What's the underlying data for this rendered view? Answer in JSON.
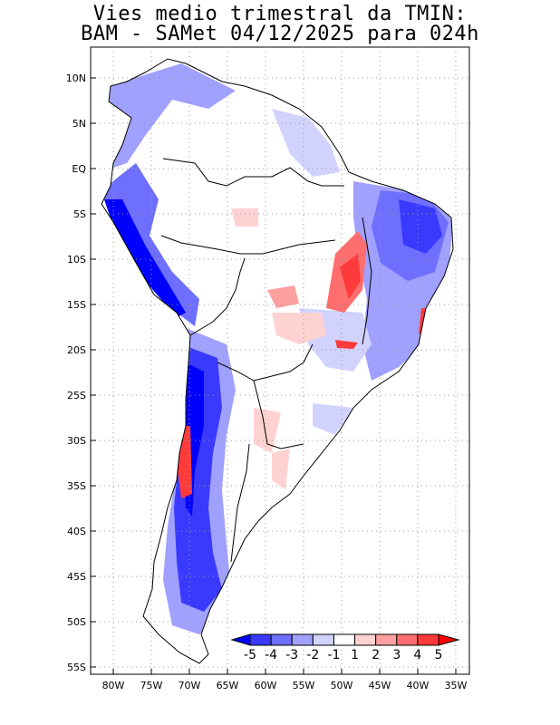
{
  "title": {
    "line1": "Vies medio trimestral da TMIN:",
    "line2": "BAM - SAMet 04/12/2025  para 024h"
  },
  "axes": {
    "lat_labels": [
      "10N",
      "5N",
      "EQ",
      "5S",
      "10S",
      "15S",
      "20S",
      "25S",
      "30S",
      "35S",
      "40S",
      "45S",
      "50S",
      "55S"
    ],
    "lon_labels": [
      "80W",
      "75W",
      "70W",
      "65W",
      "60W",
      "55W",
      "50W",
      "45W",
      "40W",
      "35W"
    ]
  },
  "colorbar": {
    "labels": [
      "-5",
      "-4",
      "-3",
      "-2",
      "-1",
      "1",
      "2",
      "3",
      "4",
      "5"
    ],
    "colors": [
      "#0000ff",
      "#3a3aff",
      "#6e6eff",
      "#a0a0ff",
      "#d2d2ff",
      "#ffffff",
      "#ffd2d2",
      "#ffa0a0",
      "#ff6e6e",
      "#ff3a3a",
      "#ff0000"
    ]
  }
}
